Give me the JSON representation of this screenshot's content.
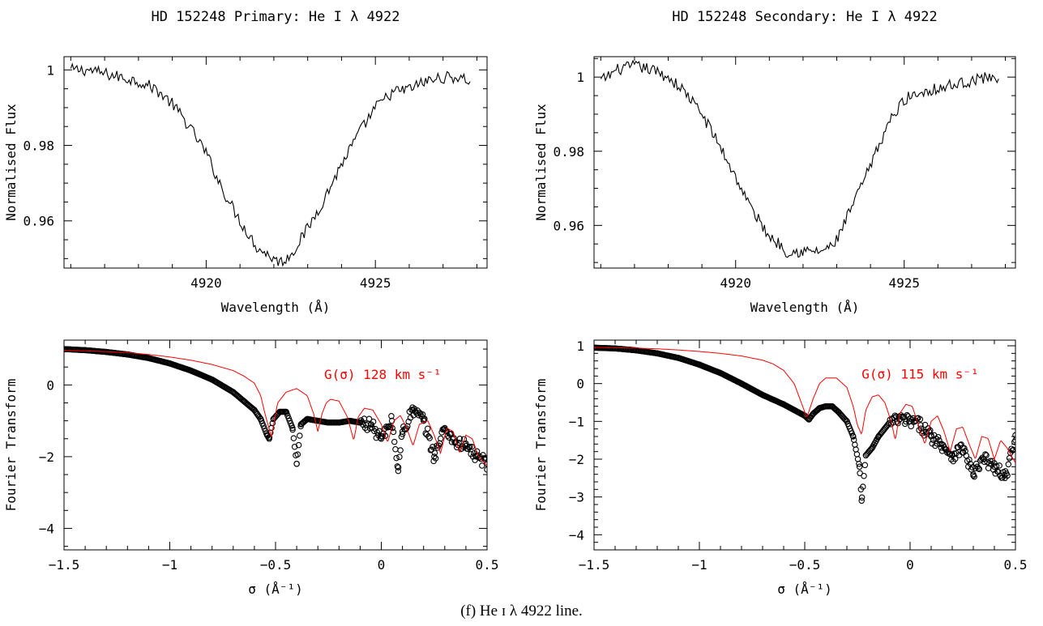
{
  "caption": "(f) He ɪ λ 4922 line.",
  "chart_data": [
    {
      "type": "line",
      "title": "HD 152248 Primary: He I λ 4922",
      "xlabel": "Wavelength (Å)",
      "ylabel": "Normalised Flux",
      "xlim": [
        4915.8,
        4928.3
      ],
      "ylim": [
        0.9475,
        1.0035
      ],
      "xticks": [
        4920,
        4925
      ],
      "yticks": [
        0.96,
        0.98,
        1
      ],
      "ytick_labels": [
        "0.96",
        "0.98",
        "1"
      ],
      "xtick_labels": [
        "4920",
        "4925"
      ],
      "series": [
        {
          "color": "#000000",
          "x": [
            4916.0,
            4916.5,
            4917.0,
            4917.5,
            4918.0,
            4918.5,
            4919.0,
            4919.5,
            4920.0,
            4920.5,
            4921.0,
            4921.5,
            4922.0,
            4922.2,
            4922.5,
            4923.0,
            4923.5,
            4924.0,
            4924.5,
            4925.0,
            4925.5,
            4926.0,
            4926.5,
            4927.0,
            4927.5,
            4927.8
          ],
          "y": [
            1.0,
            1.0,
            0.999,
            0.998,
            0.997,
            0.995,
            0.991,
            0.985,
            0.978,
            0.968,
            0.96,
            0.953,
            0.95,
            0.949,
            0.951,
            0.958,
            0.966,
            0.975,
            0.983,
            0.99,
            0.994,
            0.995,
            0.997,
            0.998,
            0.998,
            0.997
          ]
        }
      ]
    },
    {
      "type": "line",
      "title": "HD 152248 Secondary: He I λ 4922",
      "xlabel": "Wavelength (Å)",
      "ylabel": "Normalised Flux",
      "xlim": [
        4915.8,
        4928.3
      ],
      "ylim": [
        0.9485,
        1.0055
      ],
      "xticks": [
        4920,
        4925
      ],
      "yticks": [
        0.96,
        0.98,
        1
      ],
      "ytick_labels": [
        "0.96",
        "0.98",
        "1"
      ],
      "xtick_labels": [
        "4920",
        "4925"
      ],
      "series": [
        {
          "color": "#000000",
          "x": [
            4916.0,
            4916.5,
            4917.0,
            4917.5,
            4918.0,
            4918.5,
            4919.0,
            4919.5,
            4920.0,
            4920.5,
            4921.0,
            4921.3,
            4921.5,
            4922.0,
            4922.5,
            4922.8,
            4923.0,
            4923.5,
            4924.0,
            4924.5,
            4925.0,
            4925.5,
            4926.0,
            4926.5,
            4927.0,
            4927.5,
            4927.8
          ],
          "y": [
            0.999,
            1.002,
            1.003,
            1.002,
            1.0,
            0.996,
            0.99,
            0.982,
            0.973,
            0.964,
            0.957,
            0.955,
            0.953,
            0.953,
            0.953,
            0.954,
            0.956,
            0.966,
            0.976,
            0.987,
            0.994,
            0.996,
            0.997,
            0.998,
            0.999,
            1.0,
            1.0
          ]
        }
      ]
    },
    {
      "type": "scatter",
      "xlabel": "σ (Å⁻¹)",
      "ylabel": "Fourier Transform",
      "xlim": [
        -1.5,
        0.5
      ],
      "ylim": [
        -4.6,
        1.25
      ],
      "xticks": [
        -1.5,
        -1,
        -0.5,
        0,
        0.5
      ],
      "xtick_labels": [
        "−1.5",
        "−1",
        "−0.5",
        "0",
        "0.5"
      ],
      "yticks": [
        -4,
        -2,
        0
      ],
      "ytick_labels": [
        "−4",
        "−2",
        "0"
      ],
      "annotation": "G(σ) 128 km s⁻¹",
      "annotation_color": "#ff0000",
      "series": [
        {
          "style": "circles",
          "color": "#000000",
          "x": [
            -1.5,
            -1.4,
            -1.3,
            -1.2,
            -1.1,
            -1.0,
            -0.9,
            -0.8,
            -0.7,
            -0.65,
            -0.6,
            -0.57,
            -0.54,
            -0.53,
            -0.51,
            -0.48,
            -0.45,
            -0.42,
            -0.4,
            -0.38,
            -0.35,
            -0.3,
            -0.25,
            -0.2,
            -0.15,
            -0.1,
            -0.05,
            0.0,
            0.05,
            0.08,
            0.1,
            0.15,
            0.2,
            0.25,
            0.3,
            0.35,
            0.4,
            0.45,
            0.5
          ],
          "y": [
            1.0,
            0.97,
            0.92,
            0.85,
            0.75,
            0.6,
            0.4,
            0.15,
            -0.2,
            -0.45,
            -0.7,
            -0.95,
            -1.4,
            -1.5,
            -0.95,
            -0.75,
            -0.75,
            -1.2,
            -2.2,
            -1.1,
            -0.95,
            -1.0,
            -1.05,
            -1.05,
            -1.0,
            -1.05,
            -1.1,
            -1.5,
            -1.0,
            -2.4,
            -1.3,
            -0.7,
            -1.0,
            -2.0,
            -1.2,
            -1.6,
            -1.7,
            -2.0,
            -2.2
          ]
        },
        {
          "style": "line",
          "color": "#ff0000",
          "x": [
            -1.5,
            -1.4,
            -1.3,
            -1.2,
            -1.1,
            -1.0,
            -0.9,
            -0.8,
            -0.7,
            -0.65,
            -0.6,
            -0.57,
            -0.55,
            -0.52,
            -0.49,
            -0.45,
            -0.4,
            -0.35,
            -0.32,
            -0.3,
            -0.28,
            -0.26,
            -0.24,
            -0.2,
            -0.16,
            -0.13,
            -0.11,
            -0.08,
            -0.04,
            0.0,
            0.03,
            0.06,
            0.09,
            0.12,
            0.15,
            0.18,
            0.22,
            0.25,
            0.28,
            0.31,
            0.34,
            0.37,
            0.4,
            0.43,
            0.46,
            0.5
          ],
          "y": [
            0.96,
            0.95,
            0.93,
            0.9,
            0.85,
            0.78,
            0.69,
            0.57,
            0.4,
            0.25,
            0.05,
            -0.3,
            -0.8,
            -1.45,
            -0.5,
            -0.2,
            -0.1,
            -0.3,
            -0.8,
            -1.3,
            -0.8,
            -0.5,
            -0.4,
            -0.45,
            -0.9,
            -1.55,
            -0.9,
            -0.65,
            -0.7,
            -1.1,
            -1.6,
            -1.0,
            -0.85,
            -1.2,
            -1.7,
            -1.1,
            -1.0,
            -1.4,
            -1.9,
            -1.2,
            -1.3,
            -1.9,
            -1.4,
            -1.5,
            -2.0,
            -2.25
          ]
        }
      ]
    },
    {
      "type": "scatter",
      "xlabel": "σ (Å⁻¹)",
      "ylabel": "Fourier Transform",
      "xlim": [
        -1.5,
        0.5
      ],
      "ylim": [
        -4.4,
        1.15
      ],
      "xticks": [
        -1.5,
        -1,
        -0.5,
        0,
        0.5
      ],
      "xtick_labels": [
        "−1.5",
        "−1",
        "−0.5",
        "0",
        "0.5"
      ],
      "yticks": [
        -4,
        -3,
        -2,
        -1,
        0,
        1
      ],
      "ytick_labels": [
        "−4",
        "−3",
        "−2",
        "−1",
        "0",
        "1"
      ],
      "annotation": "G(σ) 115 km s⁻¹",
      "annotation_color": "#ff0000",
      "series": [
        {
          "style": "circles",
          "color": "#000000",
          "x": [
            -1.5,
            -1.4,
            -1.3,
            -1.2,
            -1.1,
            -1.0,
            -0.9,
            -0.8,
            -0.7,
            -0.6,
            -0.55,
            -0.5,
            -0.48,
            -0.46,
            -0.43,
            -0.4,
            -0.37,
            -0.34,
            -0.3,
            -0.27,
            -0.24,
            -0.23,
            -0.21,
            -0.18,
            -0.15,
            -0.1,
            -0.05,
            0.0,
            0.05,
            0.1,
            0.15,
            0.2,
            0.25,
            0.3,
            0.35,
            0.4,
            0.45,
            0.5
          ],
          "y": [
            0.95,
            0.93,
            0.88,
            0.8,
            0.68,
            0.5,
            0.28,
            0.0,
            -0.3,
            -0.55,
            -0.7,
            -0.85,
            -0.95,
            -0.8,
            -0.65,
            -0.6,
            -0.6,
            -0.75,
            -1.0,
            -1.4,
            -2.2,
            -3.1,
            -1.9,
            -1.7,
            -1.4,
            -1.05,
            -0.95,
            -1.0,
            -1.1,
            -1.4,
            -1.6,
            -1.9,
            -1.7,
            -2.4,
            -2.0,
            -2.2,
            -2.5,
            -1.5
          ]
        },
        {
          "style": "line",
          "color": "#ff0000",
          "x": [
            -1.5,
            -1.4,
            -1.3,
            -1.2,
            -1.1,
            -1.0,
            -0.9,
            -0.8,
            -0.7,
            -0.65,
            -0.6,
            -0.55,
            -0.52,
            -0.49,
            -0.46,
            -0.43,
            -0.4,
            -0.35,
            -0.3,
            -0.27,
            -0.25,
            -0.23,
            -0.21,
            -0.18,
            -0.15,
            -0.12,
            -0.09,
            -0.07,
            -0.05,
            -0.02,
            0.01,
            0.04,
            0.07,
            0.1,
            0.13,
            0.16,
            0.19,
            0.22,
            0.25,
            0.28,
            0.31,
            0.34,
            0.37,
            0.4,
            0.43,
            0.46,
            0.5
          ],
          "y": [
            0.96,
            0.95,
            0.94,
            0.92,
            0.89,
            0.85,
            0.8,
            0.73,
            0.62,
            0.52,
            0.35,
            0.0,
            -0.45,
            -0.9,
            -0.4,
            0.0,
            0.15,
            0.15,
            -0.1,
            -0.6,
            -1.1,
            -1.35,
            -0.7,
            -0.35,
            -0.3,
            -0.5,
            -1.0,
            -1.5,
            -0.8,
            -0.55,
            -0.6,
            -1.1,
            -1.6,
            -1.0,
            -0.85,
            -1.25,
            -1.8,
            -1.2,
            -1.15,
            -1.6,
            -2.0,
            -1.4,
            -1.45,
            -2.0,
            -1.5,
            -1.7,
            -2.1
          ]
        }
      ]
    }
  ]
}
